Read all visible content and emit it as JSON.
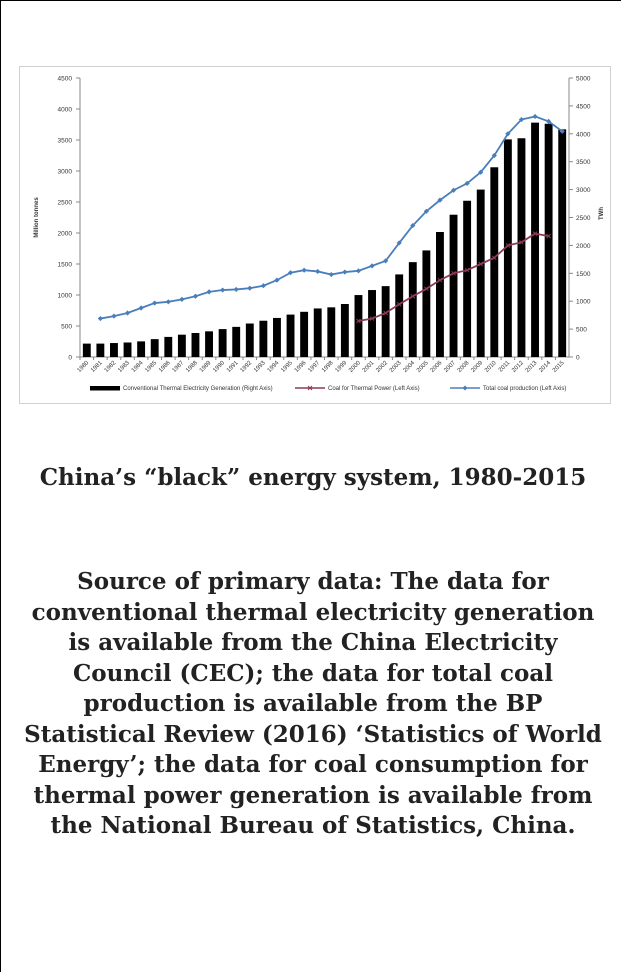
{
  "chart_data": {
    "type": "bar",
    "title": "",
    "years": [
      "1980",
      "1981",
      "1982",
      "1983",
      "1984",
      "1985",
      "1986",
      "1987",
      "1988",
      "1989",
      "1990",
      "1991",
      "1992",
      "1993",
      "1994",
      "1995",
      "1996",
      "1997",
      "1998",
      "1999",
      "2000",
      "2001",
      "2002",
      "2003",
      "2004",
      "2005",
      "2006",
      "2007",
      "2008",
      "2009",
      "2010",
      "2011",
      "2012",
      "2013",
      "2014",
      "2015"
    ],
    "left_axis": {
      "label": "Million  tonnes",
      "ylim": [
        0,
        4500
      ],
      "ticks": [
        0,
        500,
        1000,
        1500,
        2000,
        2500,
        3000,
        3500,
        4000,
        4500
      ]
    },
    "right_axis": {
      "label": "TWh",
      "ylim": [
        0,
        5000
      ],
      "ticks": [
        0,
        500,
        1000,
        1500,
        2000,
        2500,
        3000,
        3500,
        4000,
        4500,
        5000
      ]
    },
    "series": [
      {
        "name": "Conventional Thermal Electricity  Generation (Right Axis)",
        "type": "bar",
        "axis": "right",
        "color": "#000000",
        "values": [
          240,
          240,
          250,
          260,
          280,
          320,
          360,
          400,
          430,
          460,
          500,
          540,
          600,
          650,
          700,
          760,
          810,
          870,
          890,
          950,
          1110,
          1200,
          1270,
          1480,
          1700,
          1910,
          2240,
          2550,
          2800,
          3000,
          3400,
          3900,
          3920,
          4200,
          4180,
          4080
        ]
      },
      {
        "name": "Coal for Thermal Power (Left Axis)",
        "type": "line",
        "axis": "left",
        "color": "#8b3a5a",
        "marker": "x",
        "start_index": 20,
        "values": [
          580,
          620,
          710,
          850,
          980,
          1100,
          1240,
          1350,
          1400,
          1500,
          1600,
          1800,
          1850,
          1990,
          1950
        ]
      },
      {
        "name": "Total coal production  (Left Axis)",
        "type": "line",
        "axis": "left",
        "color": "#4a7ebb",
        "marker": "diamond",
        "start_index": 1,
        "values": [
          620,
          660,
          710,
          790,
          870,
          890,
          930,
          980,
          1050,
          1080,
          1090,
          1110,
          1150,
          1240,
          1360,
          1400,
          1380,
          1330,
          1370,
          1390,
          1470,
          1550,
          1840,
          2120,
          2350,
          2530,
          2690,
          2800,
          2980,
          3250,
          3600,
          3830,
          3880,
          3800,
          3640
        ]
      }
    ],
    "grid": false,
    "legend_position": "bottom"
  },
  "caption": {
    "title": "China’s “black” energy system, 1980-2015",
    "source": "Source of primary data: The data for conventional thermal electricity generation is available from the China Electricity Council (CEC); the data for total coal production is available from the BP Statistical Review (2016) ‘Statistics of World Energy’; the data for coal consumption for thermal power generation is available from the National Bureau of Statistics, China."
  }
}
